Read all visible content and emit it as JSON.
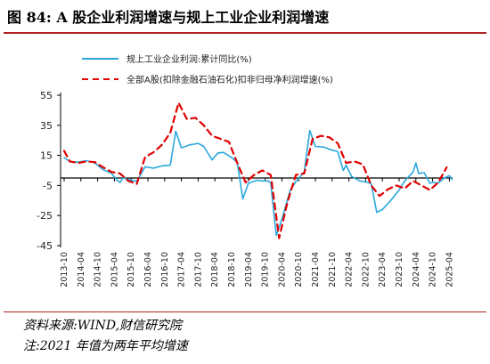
{
  "title": "图 84:  A 股企业利润增速与规上工业企业利润增速",
  "source": "资料来源:WIND,财信研究院",
  "note": "注:2021 年值为两年平均增速",
  "chart_data": {
    "type": "line",
    "x_ticks": [
      "2013-10",
      "2014-04",
      "2014-10",
      "2015-04",
      "2015-10",
      "2016-04",
      "2016-10",
      "2017-04",
      "2017-10",
      "2018-04",
      "2018-10",
      "2019-04",
      "2019-10",
      "2020-04",
      "2020-10",
      "2021-04",
      "2021-10",
      "2022-04",
      "2022-10",
      "2023-04",
      "2023-10",
      "2024-04",
      "2024-10",
      "2025-04"
    ],
    "y_ticks": [
      55,
      35,
      15,
      -5,
      -25,
      -45
    ],
    "ylim": [
      -45,
      55
    ],
    "grid": false,
    "legend_position": "top-left",
    "series": [
      {
        "name": "规上工业企业利润:累计同比(%)",
        "color": "#29a8dc",
        "style": "solid",
        "points": [
          [
            "2013-10",
            13.5
          ],
          [
            "2013-12",
            11
          ],
          [
            "2014-03",
            10.5
          ],
          [
            "2014-06",
            11.5
          ],
          [
            "2014-09",
            10
          ],
          [
            "2014-12",
            5.5
          ],
          [
            "2015-03",
            3
          ],
          [
            "2015-05",
            -1.5
          ],
          [
            "2015-06",
            -3
          ],
          [
            "2015-07",
            0
          ],
          [
            "2015-09",
            -1
          ],
          [
            "2015-12",
            -2.3
          ],
          [
            "2016-03",
            7.5
          ],
          [
            "2016-06",
            6.5
          ],
          [
            "2016-09",
            8
          ],
          [
            "2016-12",
            8.5
          ],
          [
            "2017-02",
            31
          ],
          [
            "2017-04",
            20
          ],
          [
            "2017-07",
            22
          ],
          [
            "2017-10",
            23
          ],
          [
            "2017-12",
            21
          ],
          [
            "2018-03",
            12
          ],
          [
            "2018-05",
            16.5
          ],
          [
            "2018-07",
            17
          ],
          [
            "2018-10",
            13.5
          ],
          [
            "2018-12",
            10.5
          ],
          [
            "2019-02",
            -14
          ],
          [
            "2019-04",
            -3.5
          ],
          [
            "2019-07",
            -1.5
          ],
          [
            "2019-09",
            -2
          ],
          [
            "2019-11",
            -2
          ],
          [
            "2019-12",
            -3.3
          ],
          [
            "2020-02",
            -38.3
          ],
          [
            "2020-04",
            -27.4
          ],
          [
            "2020-07",
            -8
          ],
          [
            "2020-09",
            -2.4
          ],
          [
            "2020-12",
            4.1
          ],
          [
            "2021-02",
            31.5
          ],
          [
            "2021-04",
            21
          ],
          [
            "2021-07",
            20.5
          ],
          [
            "2021-09",
            19
          ],
          [
            "2021-12",
            17.5
          ],
          [
            "2022-02",
            5
          ],
          [
            "2022-03",
            8.5
          ],
          [
            "2022-05",
            1
          ],
          [
            "2022-08",
            -2
          ],
          [
            "2022-11",
            -3
          ],
          [
            "2022-12",
            -4
          ],
          [
            "2023-02",
            -22.9
          ],
          [
            "2023-04",
            -21
          ],
          [
            "2023-07",
            -15
          ],
          [
            "2023-10",
            -8
          ],
          [
            "2023-12",
            -2
          ],
          [
            "2024-03",
            4
          ],
          [
            "2024-04",
            10
          ],
          [
            "2024-05",
            3
          ],
          [
            "2024-07",
            3.5
          ],
          [
            "2024-09",
            -3.5
          ],
          [
            "2024-10",
            -3
          ],
          [
            "2024-12",
            -3.3
          ],
          [
            "2025-02",
            -0.3
          ],
          [
            "2025-04",
            1.5
          ],
          [
            "2025-05",
            -1
          ]
        ]
      },
      {
        "name": "全部A股(扣除金融石油石化)扣非归母净利润增速(%)",
        "color": "#e00000",
        "style": "dashed",
        "points": [
          [
            "2013-10",
            18
          ],
          [
            "2013-12",
            11
          ],
          [
            "2014-03",
            10
          ],
          [
            "2014-06",
            11
          ],
          [
            "2014-09",
            10.5
          ],
          [
            "2014-12",
            7
          ],
          [
            "2015-03",
            4
          ],
          [
            "2015-06",
            3
          ],
          [
            "2015-09",
            -2
          ],
          [
            "2015-12",
            -4
          ],
          [
            "2016-03",
            14
          ],
          [
            "2016-06",
            17
          ],
          [
            "2016-09",
            22
          ],
          [
            "2016-12",
            30
          ],
          [
            "2017-03",
            50
          ],
          [
            "2017-06",
            39
          ],
          [
            "2017-09",
            40
          ],
          [
            "2017-12",
            35
          ],
          [
            "2018-03",
            28
          ],
          [
            "2018-06",
            26
          ],
          [
            "2018-09",
            24
          ],
          [
            "2018-12",
            10
          ],
          [
            "2019-03",
            -3
          ],
          [
            "2019-06",
            2
          ],
          [
            "2019-09",
            5
          ],
          [
            "2019-12",
            2
          ],
          [
            "2020-03",
            -40
          ],
          [
            "2020-06",
            -16
          ],
          [
            "2020-09",
            2
          ],
          [
            "2020-12",
            3
          ],
          [
            "2021-03",
            26
          ],
          [
            "2021-06",
            28
          ],
          [
            "2021-09",
            27
          ],
          [
            "2021-12",
            23
          ],
          [
            "2022-03",
            10
          ],
          [
            "2022-06",
            11
          ],
          [
            "2022-09",
            9
          ],
          [
            "2022-12",
            -5
          ],
          [
            "2023-03",
            -12
          ],
          [
            "2023-06",
            -7.5
          ],
          [
            "2023-09",
            -5
          ],
          [
            "2023-12",
            -7
          ],
          [
            "2024-03",
            -2
          ],
          [
            "2024-06",
            -5
          ],
          [
            "2024-09",
            -8
          ],
          [
            "2024-12",
            -3
          ],
          [
            "2025-03",
            7
          ]
        ]
      }
    ]
  }
}
